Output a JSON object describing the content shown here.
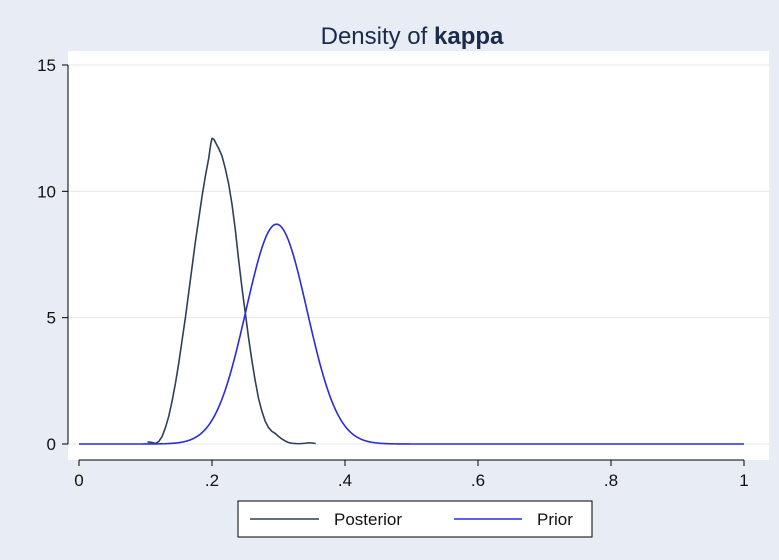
{
  "chart_data": {
    "type": "line",
    "title_prefix": "Density of ",
    "title_bold": "kappa",
    "xlabel": "",
    "ylabel": "",
    "xlim": [
      0,
      1
    ],
    "ylim": [
      0,
      15
    ],
    "x_ticks": [
      0,
      0.2,
      0.4,
      0.6,
      0.8,
      1.0
    ],
    "x_tick_labels": [
      "0",
      ".2",
      ".4",
      ".6",
      ".8",
      "1"
    ],
    "y_ticks": [
      0,
      5,
      10,
      15
    ],
    "y_tick_labels": [
      "0",
      "5",
      "10",
      "15"
    ],
    "grid": "horizontal",
    "legend_position": "bottom",
    "series": [
      {
        "name": "Posterior",
        "color": "#2f3f57",
        "points": [
          [
            0.103,
            0.08
          ],
          [
            0.11,
            0.06
          ],
          [
            0.115,
            0.02
          ],
          [
            0.12,
            0.1
          ],
          [
            0.125,
            0.3
          ],
          [
            0.13,
            0.65
          ],
          [
            0.135,
            1.1
          ],
          [
            0.14,
            1.7
          ],
          [
            0.145,
            2.4
          ],
          [
            0.15,
            3.2
          ],
          [
            0.155,
            4.1
          ],
          [
            0.16,
            5.0
          ],
          [
            0.165,
            6.0
          ],
          [
            0.17,
            7.0
          ],
          [
            0.175,
            8.0
          ],
          [
            0.18,
            8.9
          ],
          [
            0.185,
            9.8
          ],
          [
            0.19,
            10.6
          ],
          [
            0.195,
            11.3
          ],
          [
            0.198,
            11.85
          ],
          [
            0.2,
            12.1
          ],
          [
            0.203,
            12.05
          ],
          [
            0.206,
            11.9
          ],
          [
            0.21,
            11.7
          ],
          [
            0.215,
            11.4
          ],
          [
            0.22,
            10.9
          ],
          [
            0.225,
            10.3
          ],
          [
            0.23,
            9.5
          ],
          [
            0.235,
            8.5
          ],
          [
            0.24,
            7.3
          ],
          [
            0.245,
            6.2
          ],
          [
            0.25,
            5.2
          ],
          [
            0.255,
            4.2
          ],
          [
            0.26,
            3.3
          ],
          [
            0.265,
            2.5
          ],
          [
            0.27,
            1.8
          ],
          [
            0.275,
            1.3
          ],
          [
            0.28,
            0.9
          ],
          [
            0.285,
            0.65
          ],
          [
            0.29,
            0.5
          ],
          [
            0.295,
            0.42
          ],
          [
            0.3,
            0.3
          ],
          [
            0.305,
            0.2
          ],
          [
            0.31,
            0.12
          ],
          [
            0.315,
            0.06
          ],
          [
            0.32,
            0.03
          ],
          [
            0.33,
            0.01
          ],
          [
            0.34,
            0.03
          ],
          [
            0.345,
            0.05
          ],
          [
            0.35,
            0.04
          ],
          [
            0.356,
            0.02
          ]
        ]
      },
      {
        "name": "Prior",
        "color": "#2b2bdc",
        "distribution": {
          "family": "normal-shaped",
          "peak_x": 0.297,
          "peak_y": 8.7,
          "spread": 0.046
        },
        "x_range": [
          0,
          1
        ]
      }
    ]
  }
}
